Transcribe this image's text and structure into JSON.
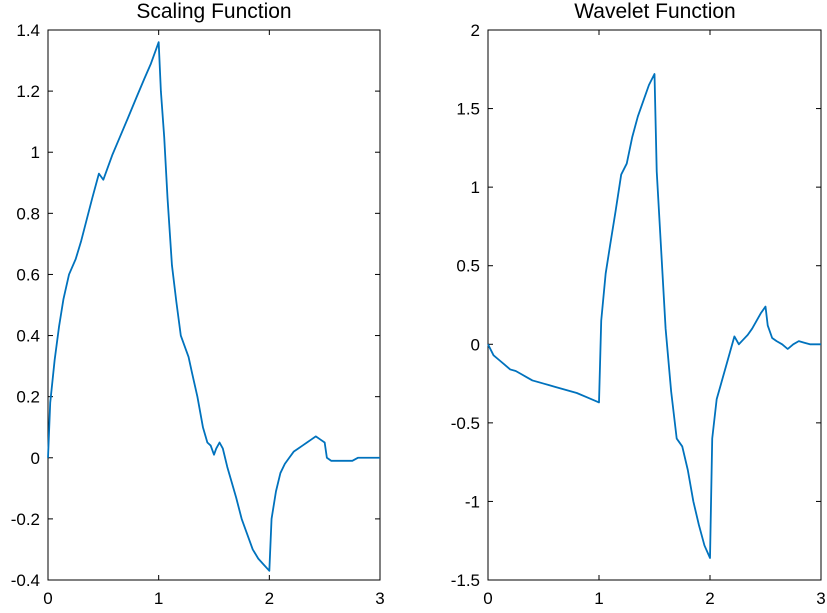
{
  "colors": {
    "line": "#0072BD",
    "axis": "#000000",
    "background": "#ffffff"
  },
  "chart_data": [
    {
      "type": "line",
      "title": "Scaling Function",
      "xlabel": "",
      "ylabel": "",
      "xlim": [
        0,
        3
      ],
      "ylim": [
        -0.4,
        1.4
      ],
      "xticks": [
        "0",
        "1",
        "2",
        "3"
      ],
      "yticks": [
        "-0.4",
        "-0.2",
        "0",
        "0.2",
        "0.4",
        "0.6",
        "0.8",
        "1",
        "1.2",
        "1.4"
      ],
      "grid": false,
      "series": [
        {
          "x": [
            0,
            0.02,
            0.06,
            0.1,
            0.14,
            0.19,
            0.25,
            0.3,
            0.35,
            0.4,
            0.46,
            0.5,
            0.53,
            0.58,
            0.65,
            0.72,
            0.8,
            0.87,
            0.93,
            0.98,
            1.0,
            1.02,
            1.05,
            1.08,
            1.12,
            1.16,
            1.2,
            1.24,
            1.27,
            1.3,
            1.35,
            1.4,
            1.44,
            1.47,
            1.5,
            1.52,
            1.55,
            1.58,
            1.62,
            1.66,
            1.7,
            1.75,
            1.8,
            1.85,
            1.9,
            1.95,
            2.0,
            2.02,
            2.06,
            2.1,
            2.14,
            2.18,
            2.22,
            2.26,
            2.3,
            2.34,
            2.38,
            2.42,
            2.46,
            2.5,
            2.52,
            2.56,
            2.6,
            2.65,
            2.7,
            2.75,
            2.8,
            2.85,
            2.9,
            2.95,
            3.0
          ],
          "values": [
            0,
            0.18,
            0.32,
            0.43,
            0.52,
            0.6,
            0.65,
            0.71,
            0.78,
            0.85,
            0.93,
            0.91,
            0.94,
            0.99,
            1.05,
            1.11,
            1.18,
            1.24,
            1.29,
            1.34,
            1.36,
            1.2,
            1.05,
            0.85,
            0.63,
            0.51,
            0.4,
            0.36,
            0.33,
            0.28,
            0.2,
            0.1,
            0.05,
            0.04,
            0.01,
            0.03,
            0.05,
            0.03,
            -0.03,
            -0.08,
            -0.13,
            -0.2,
            -0.25,
            -0.3,
            -0.33,
            -0.35,
            -0.37,
            -0.2,
            -0.11,
            -0.05,
            -0.02,
            0.0,
            0.02,
            0.03,
            0.04,
            0.05,
            0.06,
            0.07,
            0.06,
            0.05,
            0.0,
            -0.01,
            -0.01,
            -0.01,
            -0.01,
            -0.01,
            0.0,
            0.0,
            0.0,
            0.0,
            0.0
          ]
        }
      ]
    },
    {
      "type": "line",
      "title": "Wavelet Function",
      "xlabel": "",
      "ylabel": "",
      "xlim": [
        0,
        3
      ],
      "ylim": [
        -1.5,
        2
      ],
      "xticks": [
        "0",
        "1",
        "2",
        "3"
      ],
      "yticks": [
        "-1.5",
        "-1",
        "-0.5",
        "0",
        "0.5",
        "1",
        "1.5",
        "2"
      ],
      "grid": false,
      "series": [
        {
          "x": [
            0,
            0.05,
            0.1,
            0.15,
            0.2,
            0.25,
            0.3,
            0.35,
            0.4,
            0.5,
            0.55,
            0.6,
            0.7,
            0.8,
            0.9,
            1.0,
            1.02,
            1.06,
            1.1,
            1.15,
            1.2,
            1.25,
            1.3,
            1.35,
            1.4,
            1.45,
            1.5,
            1.52,
            1.56,
            1.6,
            1.65,
            1.7,
            1.75,
            1.8,
            1.85,
            1.9,
            1.95,
            2.0,
            2.02,
            2.06,
            2.1,
            2.14,
            2.18,
            2.22,
            2.26,
            2.3,
            2.34,
            2.38,
            2.42,
            2.46,
            2.5,
            2.52,
            2.56,
            2.6,
            2.65,
            2.7,
            2.75,
            2.8,
            2.85,
            2.9,
            2.95,
            3.0
          ],
          "values": [
            0,
            -0.07,
            -0.1,
            -0.13,
            -0.16,
            -0.17,
            -0.19,
            -0.21,
            -0.23,
            -0.25,
            -0.26,
            -0.27,
            -0.29,
            -0.31,
            -0.34,
            -0.37,
            0.15,
            0.45,
            0.63,
            0.85,
            1.08,
            1.15,
            1.32,
            1.45,
            1.55,
            1.65,
            1.72,
            1.1,
            0.6,
            0.1,
            -0.3,
            -0.6,
            -0.65,
            -0.8,
            -1.0,
            -1.15,
            -1.28,
            -1.36,
            -0.6,
            -0.35,
            -0.25,
            -0.15,
            -0.05,
            0.05,
            0.0,
            0.03,
            0.06,
            0.1,
            0.15,
            0.2,
            0.24,
            0.12,
            0.04,
            0.02,
            0.0,
            -0.03,
            0.0,
            0.02,
            0.01,
            0.0,
            0.0,
            0.0
          ]
        }
      ]
    }
  ]
}
